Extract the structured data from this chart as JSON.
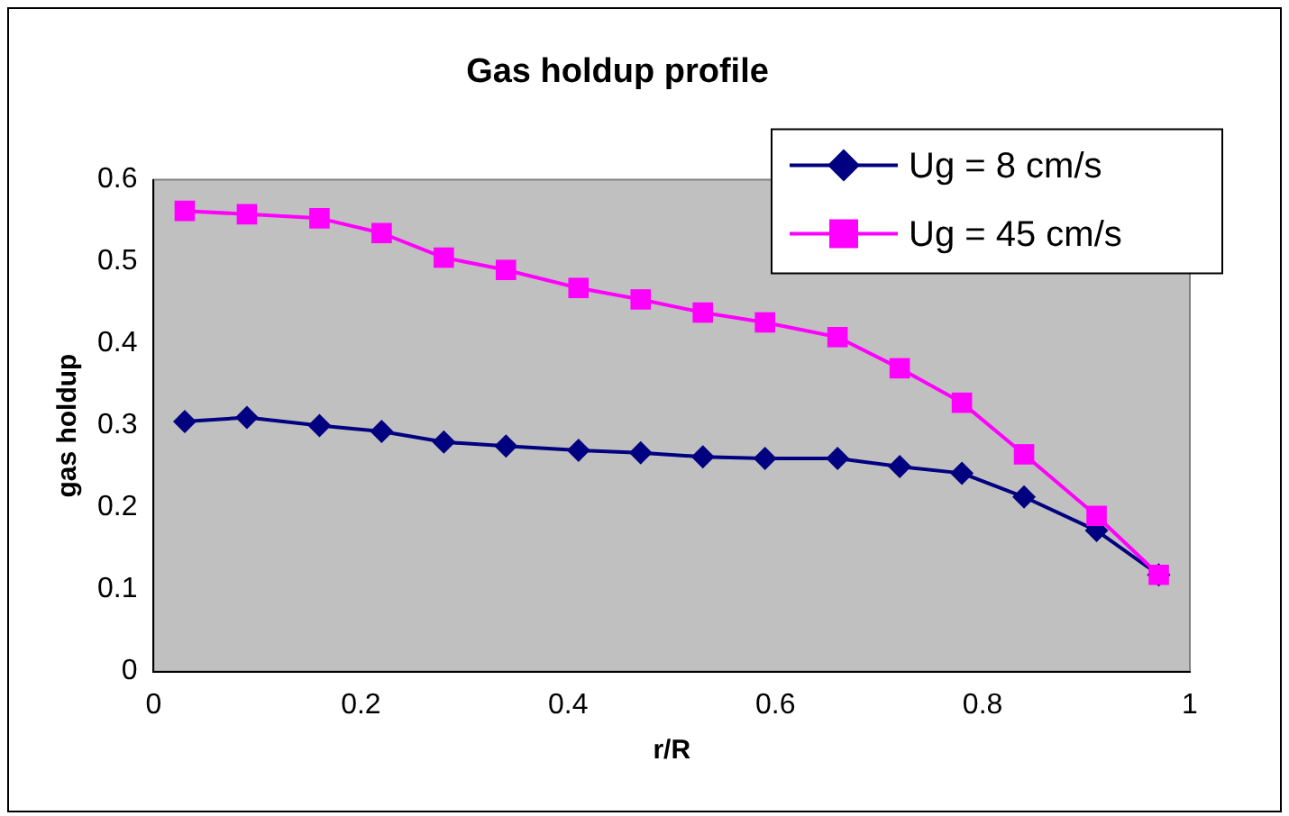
{
  "chart_data": {
    "type": "line",
    "title": "Gas holdup profile",
    "xlabel": "r/R",
    "ylabel": "gas holdup",
    "x": [
      0.03,
      0.09,
      0.16,
      0.22,
      0.28,
      0.34,
      0.41,
      0.47,
      0.53,
      0.59,
      0.66,
      0.72,
      0.78,
      0.84,
      0.91,
      0.97
    ],
    "series": [
      {
        "name": "Ug = 8 cm/s",
        "color": "#000080",
        "marker": "diamond",
        "values": [
          0.305,
          0.31,
          0.3,
          0.293,
          0.28,
          0.275,
          0.27,
          0.267,
          0.262,
          0.26,
          0.26,
          0.25,
          0.242,
          0.213,
          0.172,
          0.118
        ]
      },
      {
        "name": "Ug = 45 cm/s",
        "color": "#ff00ff",
        "marker": "square",
        "values": [
          0.562,
          0.558,
          0.553,
          0.535,
          0.505,
          0.49,
          0.468,
          0.454,
          0.438,
          0.426,
          0.408,
          0.37,
          0.328,
          0.265,
          0.19,
          0.118
        ]
      }
    ],
    "xlim": [
      0,
      1
    ],
    "xticks": [
      0,
      0.2,
      0.4,
      0.6,
      0.8,
      1
    ],
    "ylim": [
      0,
      0.6
    ],
    "yticks": [
      0,
      0.1,
      0.2,
      0.3,
      0.4,
      0.5,
      0.6
    ],
    "grid": false,
    "legend": "top right"
  }
}
